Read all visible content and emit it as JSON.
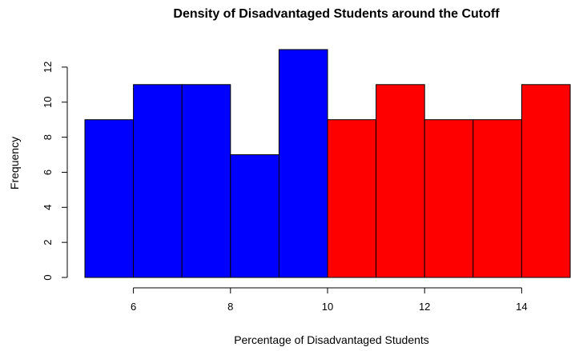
{
  "chart_data": {
    "type": "bar",
    "subtype": "histogram",
    "title": "Density of Disadvantaged Students around the Cutoff",
    "xlabel": "Percentage of Disadvantaged Students",
    "ylabel": "Frequency",
    "bins": [
      {
        "x0": 5,
        "x1": 6,
        "count": 9,
        "color": "#0000ff"
      },
      {
        "x0": 6,
        "x1": 7,
        "count": 11,
        "color": "#0000ff"
      },
      {
        "x0": 7,
        "x1": 8,
        "count": 11,
        "color": "#0000ff"
      },
      {
        "x0": 8,
        "x1": 9,
        "count": 7,
        "color": "#0000ff"
      },
      {
        "x0": 9,
        "x1": 10,
        "count": 13,
        "color": "#0000ff"
      },
      {
        "x0": 10,
        "x1": 11,
        "count": 9,
        "color": "#ff0000"
      },
      {
        "x0": 11,
        "x1": 12,
        "count": 11,
        "color": "#ff0000"
      },
      {
        "x0": 12,
        "x1": 13,
        "count": 9,
        "color": "#ff0000"
      },
      {
        "x0": 13,
        "x1": 14,
        "count": 9,
        "color": "#ff0000"
      },
      {
        "x0": 14,
        "x1": 15,
        "count": 11,
        "color": "#ff0000"
      }
    ],
    "xlim": [
      5,
      15
    ],
    "ylim": [
      0,
      13
    ],
    "xticks": [
      6,
      8,
      10,
      12,
      14
    ],
    "yticks": [
      0,
      2,
      4,
      6,
      8,
      10,
      12
    ],
    "grid": false,
    "colors": {
      "below_cutoff": "#0000ff",
      "above_cutoff": "#ff0000"
    }
  }
}
